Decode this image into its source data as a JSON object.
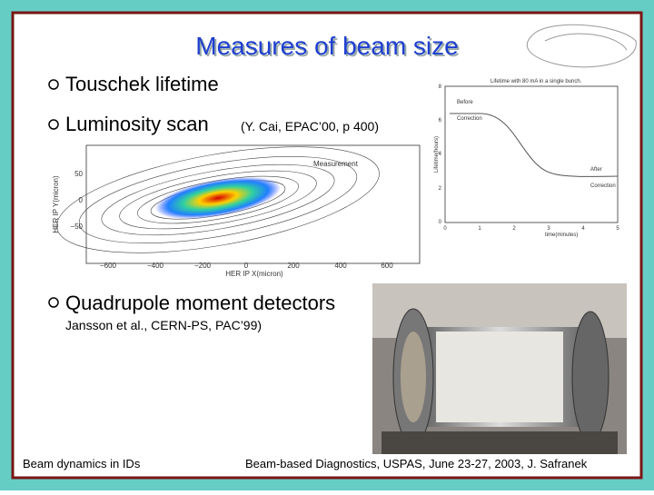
{
  "header": {
    "title": "Measures of beam size"
  },
  "bullets": [
    {
      "text": "Touschek lifetime"
    },
    {
      "text": "Luminosity scan",
      "note": "(Y. Cai, EPAC’00, p 400)"
    },
    {
      "text": "Quadrupole moment detectors",
      "note": "Jansson et al., CERN-PS, PAC’99)"
    }
  ],
  "lifetime_plot": {
    "title": "Lifetime with 80 mA in a single bunch.",
    "ylabel": "Lifetime(hours)",
    "xlabel": "time(minutes)",
    "yticks": [
      "0",
      "2",
      "4",
      "6",
      "8"
    ],
    "xticks": [
      "0",
      "1",
      "2",
      "3",
      "4",
      "5"
    ],
    "labels": [
      "Before",
      "Correction",
      "After",
      "Correction"
    ]
  },
  "scan_plot": {
    "label": "Measurement",
    "ylabel": "HER IP Y(micron)",
    "xlabel": "HER IP X(micron)",
    "yticks": [
      "50",
      "0",
      "−50"
    ],
    "xticks": [
      "−600",
      "−400",
      "−200",
      "0",
      "200",
      "400",
      "600"
    ]
  },
  "footer": {
    "left": "Beam dynamics in IDs",
    "right": "Beam-based Diagnostics, USPAS, June 23-27, 2003, J. Safranek"
  }
}
